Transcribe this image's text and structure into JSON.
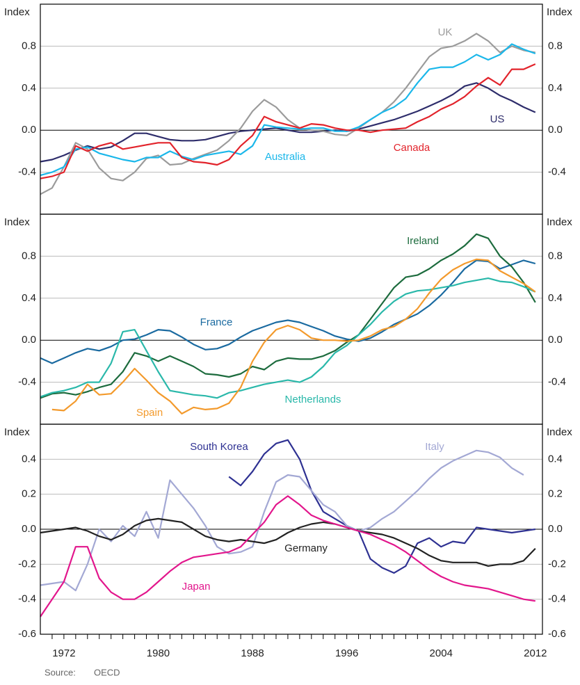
{
  "chart_data": [
    {
      "type": "line",
      "y_label": "Index",
      "ylim": [
        -0.8,
        1.2
      ],
      "yticks": [
        -0.4,
        {
          "value": 0,
          "label": "0.0"
        },
        0.4,
        0.8
      ],
      "x": [
        1970,
        1971,
        1972,
        1973,
        1974,
        1975,
        1976,
        1977,
        1978,
        1979,
        1980,
        1981,
        1982,
        1983,
        1984,
        1985,
        1986,
        1987,
        1988,
        1989,
        1990,
        1991,
        1992,
        1993,
        1994,
        1995,
        1996,
        1997,
        1998,
        1999,
        2000,
        2001,
        2002,
        2003,
        2004,
        2005,
        2006,
        2007,
        2008,
        2009,
        2010,
        2011,
        2012
      ],
      "series": [
        {
          "name": "US",
          "color": "#2e2d6b",
          "values": [
            -0.3,
            -0.28,
            -0.24,
            -0.19,
            -0.15,
            -0.18,
            -0.16,
            -0.1,
            -0.03,
            -0.03,
            -0.06,
            -0.09,
            -0.1,
            -0.1,
            -0.09,
            -0.06,
            -0.03,
            -0.01,
            0.0,
            0.01,
            0.02,
            0.0,
            -0.02,
            -0.02,
            -0.01,
            0.0,
            -0.01,
            0.01,
            0.04,
            0.07,
            0.1,
            0.14,
            0.18,
            0.23,
            0.28,
            0.34,
            0.42,
            0.45,
            0.4,
            0.33,
            0.28,
            0.22,
            0.17
          ]
        },
        {
          "name": "UK",
          "color": "#9b9b9b",
          "values": [
            -0.61,
            -0.55,
            -0.35,
            -0.12,
            -0.18,
            -0.36,
            -0.46,
            -0.48,
            -0.4,
            -0.27,
            -0.24,
            -0.33,
            -0.32,
            -0.27,
            -0.23,
            -0.19,
            -0.1,
            0.02,
            0.18,
            0.29,
            0.22,
            0.1,
            0.02,
            0.0,
            -0.01,
            -0.04,
            -0.05,
            0.02,
            0.1,
            0.17,
            0.27,
            0.4,
            0.55,
            0.7,
            0.78,
            0.8,
            0.85,
            0.92,
            0.85,
            0.74,
            0.8,
            0.76,
            0.74
          ]
        },
        {
          "name": "Australia",
          "color": "#1ab7ea",
          "values": [
            -0.43,
            -0.4,
            -0.35,
            -0.18,
            -0.16,
            -0.22,
            -0.25,
            -0.28,
            -0.3,
            -0.26,
            -0.26,
            -0.2,
            -0.25,
            -0.28,
            -0.24,
            -0.22,
            -0.2,
            -0.23,
            -0.15,
            0.05,
            0.03,
            0.02,
            0.01,
            0.02,
            0.02,
            -0.01,
            -0.01,
            0.03,
            0.1,
            0.17,
            0.22,
            0.3,
            0.45,
            0.58,
            0.6,
            0.6,
            0.65,
            0.72,
            0.67,
            0.72,
            0.82,
            0.77,
            0.73
          ]
        },
        {
          "name": "Canada",
          "color": "#e2232b",
          "values": [
            -0.46,
            -0.44,
            -0.4,
            -0.15,
            -0.2,
            -0.15,
            -0.12,
            -0.18,
            -0.16,
            -0.14,
            -0.12,
            -0.12,
            -0.26,
            -0.3,
            -0.31,
            -0.33,
            -0.28,
            -0.15,
            -0.05,
            0.13,
            0.08,
            0.05,
            0.02,
            0.06,
            0.05,
            0.02,
            0.0,
            0.0,
            -0.02,
            0.0,
            0.01,
            0.02,
            0.08,
            0.13,
            0.2,
            0.25,
            0.32,
            0.42,
            0.5,
            0.43,
            0.58,
            0.58,
            0.63
          ]
        }
      ]
    },
    {
      "type": "line",
      "y_label": "Index",
      "ylim": [
        -0.8,
        1.2
      ],
      "yticks": [
        -0.4,
        {
          "value": 0,
          "label": "0.0"
        },
        0.4,
        0.8
      ],
      "x": [
        1970,
        1971,
        1972,
        1973,
        1974,
        1975,
        1976,
        1977,
        1978,
        1979,
        1980,
        1981,
        1982,
        1983,
        1984,
        1985,
        1986,
        1987,
        1988,
        1989,
        1990,
        1991,
        1992,
        1993,
        1994,
        1995,
        1996,
        1997,
        1998,
        1999,
        2000,
        2001,
        2002,
        2003,
        2004,
        2005,
        2006,
        2007,
        2008,
        2009,
        2010,
        2011,
        2012
      ],
      "series": [
        {
          "name": "France",
          "color": "#1a6aa0",
          "values": [
            -0.17,
            -0.22,
            -0.17,
            -0.12,
            -0.08,
            -0.1,
            -0.06,
            0.0,
            0.01,
            0.05,
            0.1,
            0.09,
            0.03,
            -0.04,
            -0.09,
            -0.08,
            -0.04,
            0.03,
            0.09,
            0.13,
            0.17,
            0.19,
            0.17,
            0.13,
            0.09,
            0.04,
            0.01,
            -0.01,
            0.02,
            0.08,
            0.15,
            0.2,
            0.25,
            0.33,
            0.43,
            0.55,
            0.68,
            0.76,
            0.75,
            0.68,
            0.72,
            0.76,
            0.73
          ]
        },
        {
          "name": "Ireland",
          "color": "#1c6b3d",
          "values": [
            -0.55,
            -0.51,
            -0.5,
            -0.52,
            -0.49,
            -0.45,
            -0.42,
            -0.3,
            -0.12,
            -0.15,
            -0.2,
            -0.15,
            -0.2,
            -0.25,
            -0.32,
            -0.33,
            -0.35,
            -0.32,
            -0.25,
            -0.28,
            -0.2,
            -0.17,
            -0.18,
            -0.18,
            -0.15,
            -0.1,
            -0.02,
            0.05,
            0.2,
            0.35,
            0.5,
            0.6,
            0.62,
            0.68,
            0.76,
            0.82,
            0.9,
            1.01,
            0.97,
            0.8,
            0.7,
            0.55,
            0.36
          ]
        },
        {
          "name": "Netherlands",
          "color": "#2ab8aa",
          "values": [
            -0.54,
            -0.5,
            -0.48,
            -0.45,
            -0.4,
            -0.4,
            -0.22,
            0.08,
            0.1,
            -0.1,
            -0.3,
            -0.48,
            -0.5,
            -0.52,
            -0.53,
            -0.55,
            -0.5,
            -0.48,
            -0.45,
            -0.42,
            -0.4,
            -0.38,
            -0.4,
            -0.35,
            -0.25,
            -0.12,
            -0.05,
            0.05,
            0.15,
            0.27,
            0.37,
            0.44,
            0.47,
            0.48,
            0.5,
            0.52,
            0.55,
            0.57,
            0.59,
            0.56,
            0.55,
            0.51,
            0.46
          ]
        },
        {
          "name": "Spain",
          "color": "#f39a2c",
          "values": [
            null,
            -0.66,
            -0.67,
            -0.58,
            -0.42,
            -0.52,
            -0.51,
            -0.4,
            -0.27,
            -0.38,
            -0.5,
            -0.58,
            -0.7,
            -0.64,
            -0.66,
            -0.65,
            -0.6,
            -0.45,
            -0.2,
            -0.02,
            0.1,
            0.14,
            0.1,
            0.02,
            0.0,
            0.0,
            -0.01,
            0.0,
            0.04,
            0.1,
            0.13,
            0.2,
            0.3,
            0.45,
            0.58,
            0.67,
            0.73,
            0.77,
            0.76,
            0.66,
            0.6,
            0.54,
            0.46
          ]
        }
      ]
    },
    {
      "type": "line",
      "y_label": "Index",
      "ylim": [
        -0.6,
        0.6
      ],
      "yticks": [
        -0.6,
        -0.4,
        -0.2,
        {
          "value": 0,
          "label": "0.0"
        },
        0.2,
        0.4
      ],
      "xlim": [
        1970,
        2012.6
      ],
      "xticks": [
        1972,
        1980,
        1988,
        1996,
        2004,
        2012
      ],
      "xminorticks": [
        1971,
        1972,
        1973,
        1974,
        1975,
        1976,
        1977,
        1978,
        1979,
        1980,
        1981,
        1982,
        1983,
        1984,
        1985,
        1986,
        1987,
        1988,
        1989,
        1990,
        1991,
        1992,
        1993,
        1994,
        1995,
        1996,
        1997,
        1998,
        1999,
        2000,
        2001,
        2002,
        2003,
        2004,
        2005,
        2006,
        2007,
        2008,
        2009,
        2010,
        2011,
        2012
      ],
      "x": [
        1970,
        1971,
        1972,
        1973,
        1974,
        1975,
        1976,
        1977,
        1978,
        1979,
        1980,
        1981,
        1982,
        1983,
        1984,
        1985,
        1986,
        1987,
        1988,
        1989,
        1990,
        1991,
        1992,
        1993,
        1994,
        1995,
        1996,
        1997,
        1998,
        1999,
        2000,
        2001,
        2002,
        2003,
        2004,
        2005,
        2006,
        2007,
        2008,
        2009,
        2010,
        2011,
        2012
      ],
      "series": [
        {
          "name": "South Korea",
          "color": "#2e3192",
          "values": [
            null,
            null,
            null,
            null,
            null,
            null,
            null,
            null,
            null,
            null,
            null,
            null,
            null,
            null,
            null,
            null,
            0.3,
            0.25,
            0.33,
            0.43,
            0.49,
            0.51,
            0.4,
            0.22,
            0.1,
            0.06,
            0.02,
            -0.01,
            -0.17,
            -0.22,
            -0.25,
            -0.21,
            -0.08,
            -0.05,
            -0.1,
            -0.07,
            -0.08,
            0.01,
            0.0,
            -0.01,
            -0.02,
            -0.01,
            0.0
          ]
        },
        {
          "name": "Italy",
          "color": "#a3a8d4",
          "values": [
            -0.32,
            -0.31,
            -0.3,
            -0.35,
            -0.2,
            0.0,
            -0.07,
            0.02,
            -0.04,
            0.1,
            -0.05,
            0.28,
            0.2,
            0.12,
            0.02,
            -0.1,
            -0.14,
            -0.13,
            -0.1,
            0.1,
            0.27,
            0.31,
            0.3,
            0.22,
            0.14,
            0.1,
            0.02,
            -0.01,
            0.01,
            0.06,
            0.1,
            0.16,
            0.22,
            0.29,
            0.35,
            0.39,
            0.42,
            0.45,
            0.44,
            0.41,
            0.35,
            0.31,
            null
          ]
        },
        {
          "name": "Germany",
          "color": "#222222",
          "values": [
            -0.02,
            -0.01,
            0.0,
            0.01,
            -0.01,
            -0.04,
            -0.06,
            -0.03,
            0.02,
            0.05,
            0.06,
            0.05,
            0.04,
            0.0,
            -0.04,
            -0.06,
            -0.07,
            -0.06,
            -0.07,
            -0.08,
            -0.06,
            -0.02,
            0.01,
            0.03,
            0.04,
            0.03,
            0.01,
            -0.01,
            -0.02,
            -0.03,
            -0.05,
            -0.08,
            -0.11,
            -0.15,
            -0.18,
            -0.19,
            -0.19,
            -0.19,
            -0.21,
            -0.2,
            -0.2,
            -0.18,
            -0.11
          ]
        },
        {
          "name": "Japan",
          "color": "#e2168c",
          "values": [
            -0.5,
            -0.4,
            -0.3,
            -0.1,
            -0.1,
            -0.28,
            -0.36,
            -0.4,
            -0.4,
            -0.36,
            -0.3,
            -0.24,
            -0.19,
            -0.16,
            -0.15,
            -0.14,
            -0.13,
            -0.1,
            -0.03,
            0.04,
            0.14,
            0.19,
            0.14,
            0.08,
            0.05,
            0.03,
            0.01,
            -0.01,
            -0.03,
            -0.06,
            -0.09,
            -0.13,
            -0.18,
            -0.23,
            -0.27,
            -0.3,
            -0.32,
            -0.33,
            -0.34,
            -0.36,
            -0.38,
            -0.4,
            -0.41
          ]
        }
      ]
    }
  ],
  "source_label": "Source:",
  "source": "OECD"
}
